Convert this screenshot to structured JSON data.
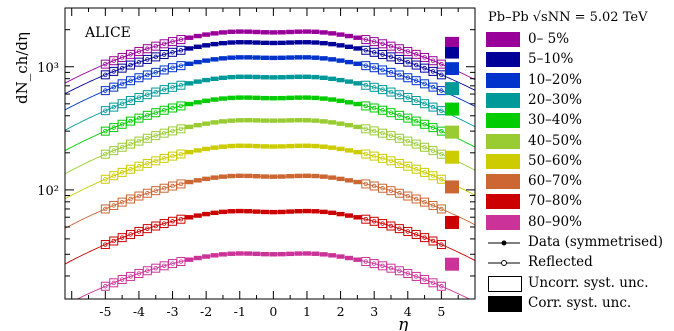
{
  "chart_data": {
    "type": "line",
    "experiment_label": "ALICE",
    "xlabel": "η",
    "ylabel": "dN_ch/dη",
    "xlim": [
      -6.2,
      6.0
    ],
    "ylim": [
      13,
      3000
    ],
    "y_scale": "log",
    "x_ticks": [
      "-5",
      "-4",
      "-3",
      "-2",
      "-1",
      "0",
      "1",
      "2",
      "3",
      "4",
      "5"
    ],
    "y_ticks": [
      "10²",
      "10³"
    ],
    "legend_title": "Pb–Pb √sNN = 5.02 TeV",
    "legend_placement": "right",
    "x": [
      -5.0,
      -4.75,
      -4.5,
      -4.25,
      -4.0,
      -3.75,
      -3.5,
      -3.25,
      -3.0,
      -2.75,
      -2.5,
      -2.25,
      -2.0,
      -1.75,
      -1.5,
      -1.25,
      -1.0,
      -0.75,
      -0.5,
      -0.25,
      0.0,
      0.25,
      0.5,
      0.75,
      1.0,
      1.25,
      1.5,
      1.75,
      2.0,
      2.25,
      2.5,
      2.75,
      3.0,
      3.25,
      3.5,
      3.75,
      4.0,
      4.25,
      4.5,
      4.75,
      5.0
    ],
    "series": [
      {
        "name": "0– 5%",
        "color": "#990099",
        "peak": 2030,
        "dip": 1900,
        "edge": 1050
      },
      {
        "name": "5–10%",
        "color": "#000099",
        "peak": 1660,
        "dip": 1560,
        "edge": 860
      },
      {
        "name": "10–20%",
        "color": "#0033cc",
        "peak": 1250,
        "dip": 1180,
        "edge": 640
      },
      {
        "name": "20–30%",
        "color": "#009999",
        "peak": 870,
        "dip": 820,
        "edge": 440
      },
      {
        "name": "30–40%",
        "color": "#00cc00",
        "peak": 590,
        "dip": 555,
        "edge": 300
      },
      {
        "name": "40–50%",
        "color": "#99cc33",
        "peak": 385,
        "dip": 365,
        "edge": 195
      },
      {
        "name": "50–60%",
        "color": "#cccc00",
        "peak": 240,
        "dip": 225,
        "edge": 122
      },
      {
        "name": "60–70%",
        "color": "#cc6633",
        "peak": 137,
        "dip": 128,
        "edge": 70
      },
      {
        "name": "70–80%",
        "color": "#cc0000",
        "peak": 71,
        "dip": 66,
        "edge": 36
      },
      {
        "name": "80–90%",
        "color": "#cc3399",
        "peak": 32,
        "dip": 30,
        "edge": 16.5
      }
    ],
    "legend_extra": [
      "Data (symmetrised)",
      "Reflected",
      "Uncorr. syst. unc.",
      "Corr. syst. unc."
    ]
  }
}
